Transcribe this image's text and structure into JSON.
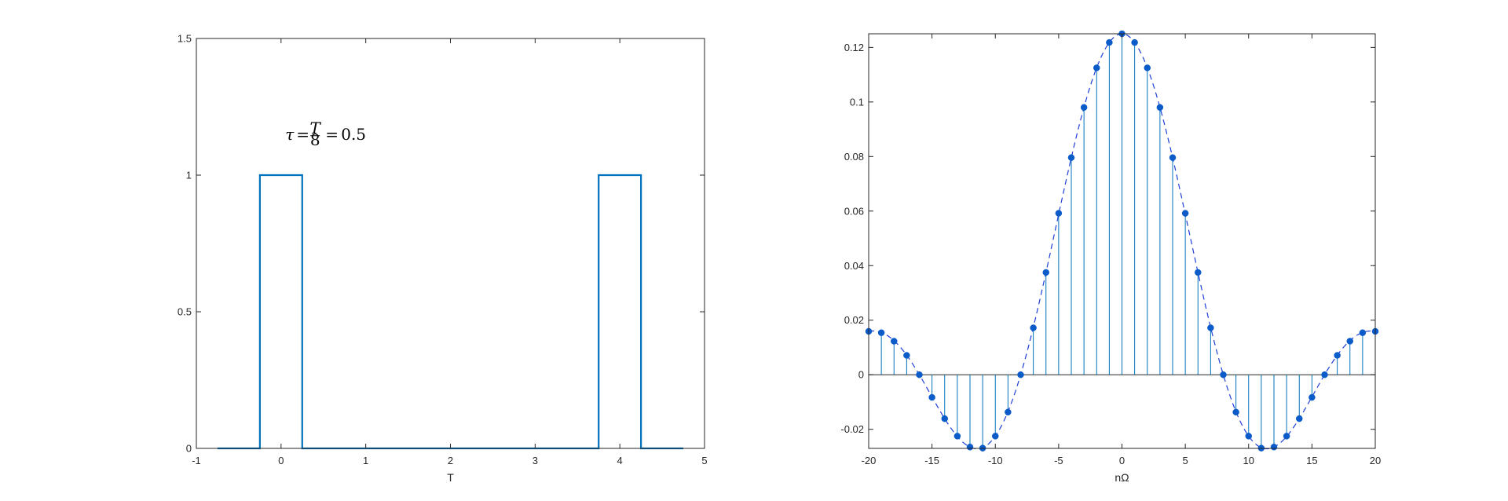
{
  "chart_data": [
    {
      "type": "line",
      "xlabel": "T",
      "ylabel": "",
      "xlim": [
        -1,
        5
      ],
      "ylim": [
        0,
        1.5
      ],
      "xticks": [
        "-1",
        "0",
        "1",
        "2",
        "3",
        "4",
        "5"
      ],
      "yticks": [
        "0",
        "0.5",
        "1",
        "1.5"
      ],
      "annotation": {
        "text": "τ = T/8 = 0.5",
        "tau": "τ",
        "eq1": "=",
        "frac_num": "T",
        "frac_den": "8",
        "eq2": "=",
        "value": "0.5",
        "x": 0.05,
        "y": 1.13
      },
      "series": [
        {
          "color": "#0072BD",
          "x": [
            -0.75,
            -0.25,
            -0.25,
            0.25,
            0.25,
            3.75,
            3.75,
            4.25,
            4.25,
            4.75
          ],
          "y": [
            0,
            0,
            1,
            1,
            0,
            0,
            1,
            1,
            0,
            0
          ]
        }
      ],
      "grid": false
    },
    {
      "type": "stem",
      "xlabel": "nΩ",
      "ylabel": "",
      "xlim": [
        -20,
        20
      ],
      "ylim": [
        -0.027,
        0.125
      ],
      "xticks": [
        "-20",
        "-15",
        "-10",
        "-5",
        "0",
        "5",
        "10",
        "15",
        "20"
      ],
      "yticks": [
        "-0.02",
        "0",
        "0.02",
        "0.04",
        "0.06",
        "0.08",
        "0.1",
        "0.12"
      ],
      "stem_color": "#0072BD",
      "marker_color": "#0B5BC9",
      "envelope": {
        "style": "dashed",
        "color": "#1F3FD6",
        "function": "0.125*sinc(n/8)"
      },
      "n": [
        -20,
        -19,
        -18,
        -17,
        -16,
        -15,
        -14,
        -13,
        -12,
        -11,
        -10,
        -9,
        -8,
        -7,
        -6,
        -5,
        -4,
        -3,
        -2,
        -1,
        0,
        1,
        2,
        3,
        4,
        5,
        6,
        7,
        8,
        9,
        10,
        11,
        12,
        13,
        14,
        15,
        16,
        17,
        18,
        19,
        20
      ],
      "values": [
        0.0159,
        0.0154,
        0.0123,
        0.0071,
        0.0,
        -0.0083,
        -0.0161,
        -0.0225,
        -0.0265,
        -0.0269,
        -0.0225,
        -0.0137,
        0.0,
        0.0172,
        0.0375,
        0.0592,
        0.0796,
        0.098,
        0.1125,
        0.1218,
        0.125,
        0.1218,
        0.1125,
        0.098,
        0.0796,
        0.0592,
        0.0375,
        0.0172,
        0.0,
        -0.0137,
        -0.0225,
        -0.0269,
        -0.0265,
        -0.0225,
        -0.0161,
        -0.0083,
        0.0,
        0.0071,
        0.0123,
        0.0154,
        0.0159
      ],
      "grid": false
    }
  ]
}
